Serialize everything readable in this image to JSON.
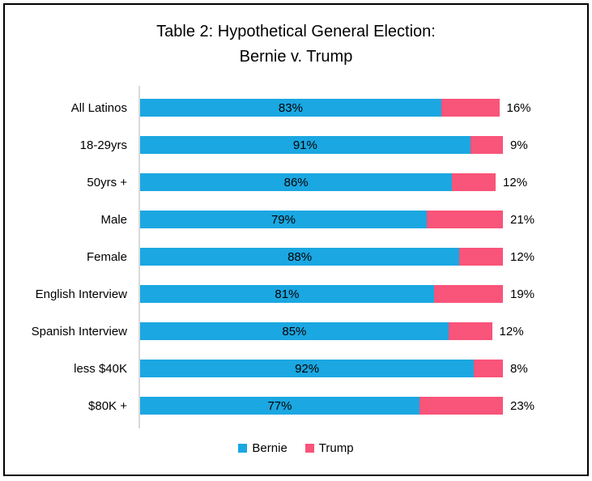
{
  "title": {
    "line1": "Table 2: Hypothetical General Election:",
    "line2": "Bernie v. Trump"
  },
  "legend": {
    "items": [
      {
        "label": "Bernie",
        "color": "#1BA7E1"
      },
      {
        "label": "Trump",
        "color": "#F9547A"
      }
    ]
  },
  "colors": {
    "bernie": "#1BA7E1",
    "trump": "#F9547A",
    "axis_line": "#D9D9D9",
    "frame_border": "#000000",
    "text": "#000000",
    "background": "#FFFFFF"
  },
  "chart_data": {
    "type": "bar",
    "orientation": "horizontal",
    "stacked": true,
    "title": "Table 2: Hypothetical General Election: Bernie v. Trump",
    "categories": [
      "All Latinos",
      "18-29yrs",
      "50yrs +",
      "Male",
      "Female",
      "English Interview",
      "Spanish Interview",
      "less $40K",
      "$80K +"
    ],
    "series": [
      {
        "name": "Bernie",
        "color": "#1BA7E1",
        "values": [
          83,
          91,
          86,
          79,
          88,
          81,
          85,
          92,
          77
        ]
      },
      {
        "name": "Trump",
        "color": "#F9547A",
        "values": [
          16,
          9,
          12,
          21,
          12,
          19,
          12,
          8,
          23
        ]
      }
    ],
    "value_suffix": "%",
    "xlim": [
      0,
      100
    ],
    "xlabel": "",
    "ylabel": "",
    "gridlines": false,
    "data_labels": {
      "bernie": "inside-center",
      "trump": "outside-right"
    },
    "legend_position": "bottom"
  }
}
